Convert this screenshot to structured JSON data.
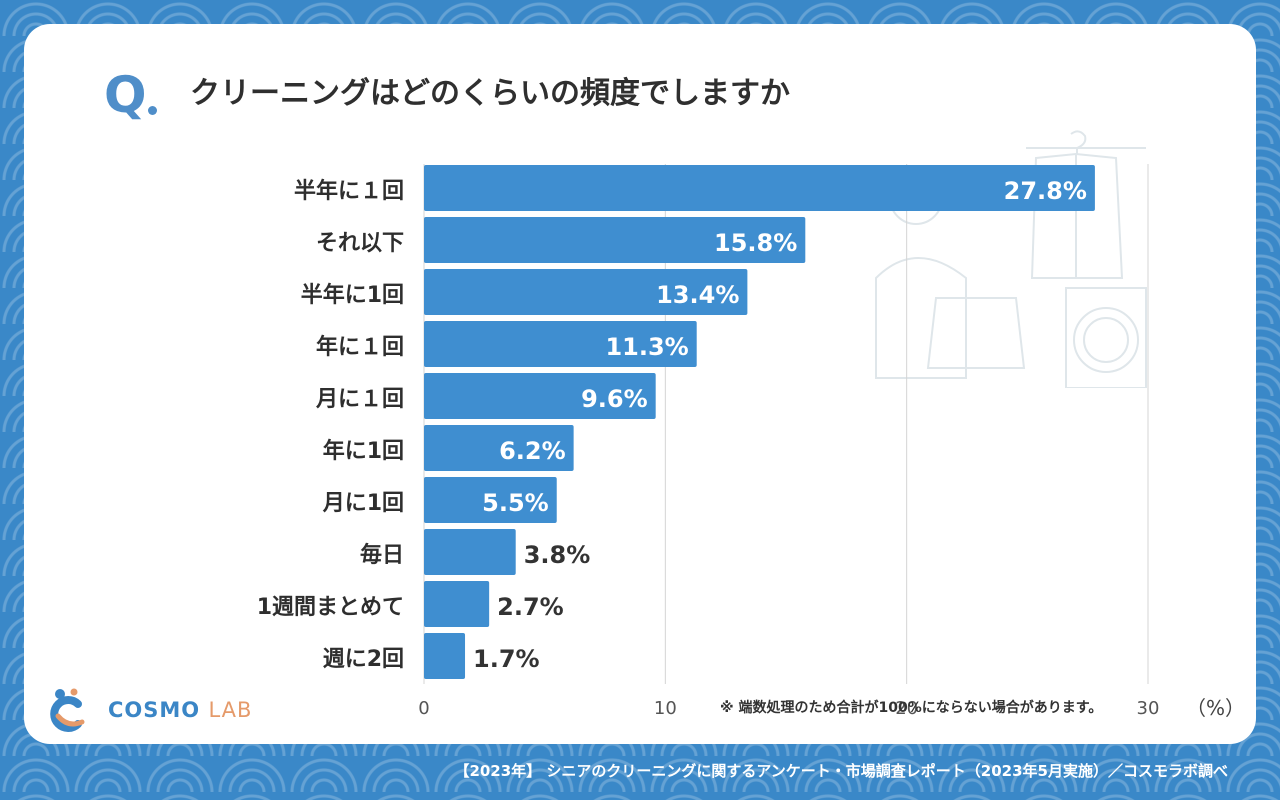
{
  "question": {
    "mark": "Q",
    "text": "クリーニングはどのくらいの頻度でしますか"
  },
  "chart_data": {
    "type": "bar",
    "orientation": "horizontal",
    "categories": [
      "半年に１回",
      "それ以下",
      "半年に1回",
      "年に１回",
      "月に１回",
      "年に1回",
      "月に1回",
      "毎日",
      "1週間まとめて",
      "週に2回"
    ],
    "values": [
      27.8,
      15.8,
      13.4,
      11.3,
      9.6,
      6.2,
      5.5,
      3.8,
      2.7,
      1.7
    ],
    "value_labels": [
      "27.8%",
      "15.8%",
      "13.4%",
      "11.3%",
      "9.6%",
      "6.2%",
      "5.5%",
      "3.8%",
      "2.7%",
      "1.7%"
    ],
    "x_ticks": [
      "0",
      "10",
      "20",
      "30"
    ],
    "xlim": [
      0,
      30
    ],
    "unit": "（%）",
    "bar_color": "#3f8ed0",
    "grid": true
  },
  "footnote": "※ 端数処理のため合計が100%にならない場合があります。",
  "logo": {
    "brand": "COSMO",
    "sub": "LAB"
  },
  "source": "【2023年】 シニアのクリーニングに関するアンケート・市場調査レポート（2023年5月実施）／コスモラボ調べ"
}
